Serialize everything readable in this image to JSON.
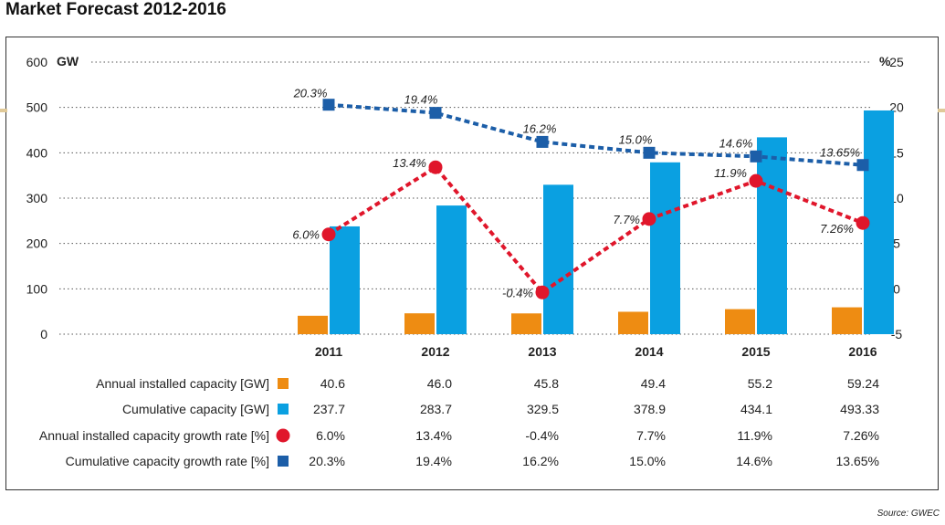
{
  "title": "Market Forecast 2012-2016",
  "source": "Source: GWEC",
  "colors": {
    "annual": "#ee8c12",
    "cumulative": "#0aa0e1",
    "growth_annual": "#e0162b",
    "growth_cumulative": "#1c5ea8",
    "grid": "#555555"
  },
  "chart_data": {
    "type": "bar",
    "categories": [
      "2011",
      "2012",
      "2013",
      "2014",
      "2015",
      "2016"
    ],
    "y_left": {
      "unit": "GW",
      "ylim": [
        0,
        600
      ],
      "ticks": [
        0,
        100,
        200,
        300,
        400,
        500,
        600
      ]
    },
    "y_right": {
      "unit": "%",
      "ylim": [
        -5,
        25
      ],
      "ticks": [
        -5,
        0,
        5,
        10,
        15,
        20,
        25
      ]
    },
    "series": [
      {
        "name": "Annual installed capacity [GW]",
        "kind": "bar",
        "axis": "left",
        "values": [
          40.6,
          46.0,
          45.8,
          49.4,
          55.2,
          59.24
        ],
        "labels": [
          "40.6",
          "46.0",
          "45.8",
          "49.4",
          "55.2",
          "59.24"
        ]
      },
      {
        "name": "Cumulative capacity [GW]",
        "kind": "bar",
        "axis": "left",
        "values": [
          237.7,
          283.7,
          329.5,
          378.9,
          434.1,
          493.33
        ],
        "labels": [
          "237.7",
          "283.7",
          "329.5",
          "378.9",
          "434.1",
          "493.33"
        ]
      },
      {
        "name": "Annual installed capacity growth rate [%]",
        "kind": "line",
        "axis": "right",
        "values": [
          6.0,
          13.4,
          -0.4,
          7.7,
          11.9,
          7.26
        ],
        "labels": [
          "6.0%",
          "13.4%",
          "-0.4%",
          "7.7%",
          "11.9%",
          "7.26%"
        ]
      },
      {
        "name": "Cumulative capacity growth rate [%]",
        "kind": "line",
        "axis": "right",
        "values": [
          20.3,
          19.4,
          16.2,
          15.0,
          14.6,
          13.65
        ],
        "labels": [
          "20.3%",
          "19.4%",
          "16.2%",
          "15.0%",
          "14.6%",
          "13.65%"
        ]
      }
    ]
  }
}
